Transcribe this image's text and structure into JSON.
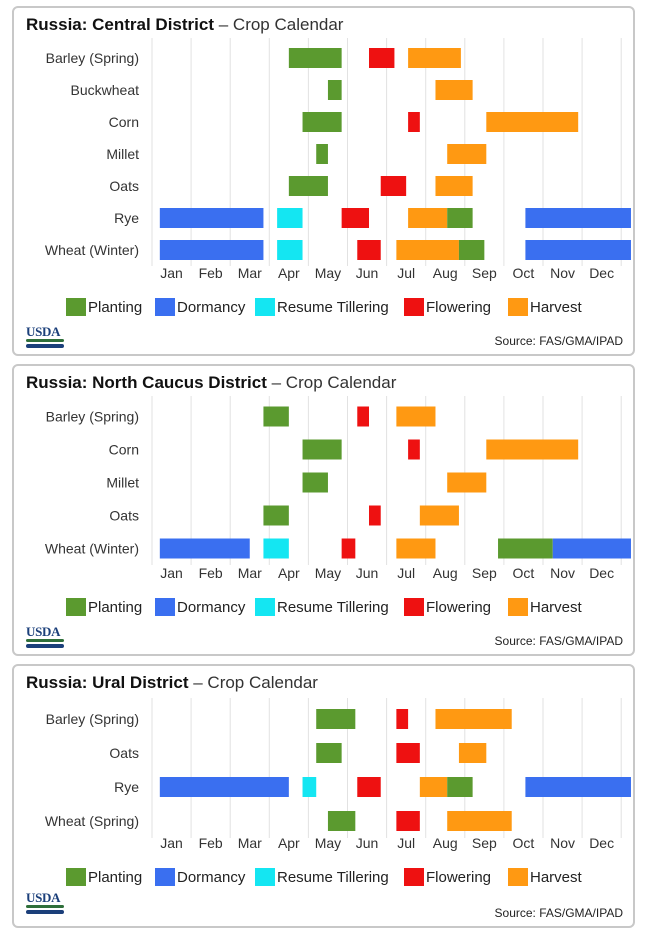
{
  "colors": {
    "Planting": "#5b9a2f",
    "Dormancy": "#3a6ff0",
    "Resume Tillering": "#14e6f2",
    "Flowering": "#ee1111",
    "Harvest": "#ff9912",
    "gridline": "#e2e2e2"
  },
  "legend": [
    "Planting",
    "Dormancy",
    "Resume Tillering",
    "Flowering",
    "Harvest"
  ],
  "months": [
    "Jan",
    "Feb",
    "Mar",
    "Apr",
    "May",
    "Jun",
    "Jul",
    "Aug",
    "Sep",
    "Oct",
    "Nov",
    "Dec"
  ],
  "logo_text": "USDA",
  "source": "Source: FAS/GMA/IPAD",
  "chart_data": [
    {
      "type": "gantt",
      "title": "Russia: Central District",
      "subtitle": "– Crop Calendar",
      "x_unit": "month",
      "crops": [
        {
          "name": "Barley (Spring)",
          "bars": [
            {
              "stage": "Planting",
              "start": 4.0,
              "end": 5.35
            },
            {
              "stage": "Flowering",
              "start": 6.05,
              "end": 6.7
            },
            {
              "stage": "Harvest",
              "start": 7.05,
              "end": 8.4
            }
          ]
        },
        {
          "name": "Buckwheat",
          "bars": [
            {
              "stage": "Planting",
              "start": 5.0,
              "end": 5.35
            },
            {
              "stage": "Harvest",
              "start": 7.75,
              "end": 8.7
            }
          ]
        },
        {
          "name": "Corn",
          "bars": [
            {
              "stage": "Planting",
              "start": 4.35,
              "end": 5.35
            },
            {
              "stage": "Flowering",
              "start": 7.05,
              "end": 7.35
            },
            {
              "stage": "Harvest",
              "start": 9.05,
              "end": 11.4
            }
          ]
        },
        {
          "name": "Millet",
          "bars": [
            {
              "stage": "Planting",
              "start": 4.7,
              "end": 5.0
            },
            {
              "stage": "Harvest",
              "start": 8.05,
              "end": 9.05
            }
          ]
        },
        {
          "name": "Oats",
          "bars": [
            {
              "stage": "Planting",
              "start": 4.0,
              "end": 5.0
            },
            {
              "stage": "Flowering",
              "start": 6.35,
              "end": 7.0
            },
            {
              "stage": "Harvest",
              "start": 7.75,
              "end": 8.7
            }
          ]
        },
        {
          "name": "Rye",
          "bars": [
            {
              "stage": "Dormancy",
              "start": 0.7,
              "end": 3.35
            },
            {
              "stage": "Resume Tillering",
              "start": 3.7,
              "end": 4.35
            },
            {
              "stage": "Flowering",
              "start": 5.35,
              "end": 6.05
            },
            {
              "stage": "Harvest",
              "start": 7.05,
              "end": 8.05
            },
            {
              "stage": "Planting",
              "start": 8.05,
              "end": 8.7
            },
            {
              "stage": "Dormancy",
              "start": 10.05,
              "end": 12.75
            }
          ]
        },
        {
          "name": "Wheat (Winter)",
          "bars": [
            {
              "stage": "Dormancy",
              "start": 0.7,
              "end": 3.35
            },
            {
              "stage": "Resume Tillering",
              "start": 3.7,
              "end": 4.35
            },
            {
              "stage": "Flowering",
              "start": 5.75,
              "end": 6.35
            },
            {
              "stage": "Harvest",
              "start": 6.75,
              "end": 8.35
            },
            {
              "stage": "Planting",
              "start": 8.35,
              "end": 9.0
            },
            {
              "stage": "Dormancy",
              "start": 10.05,
              "end": 12.75
            }
          ]
        }
      ]
    },
    {
      "type": "gantt",
      "title": "Russia: North Caucus District",
      "subtitle": "– Crop Calendar",
      "x_unit": "month",
      "crops": [
        {
          "name": "Barley (Spring)",
          "bars": [
            {
              "stage": "Planting",
              "start": 3.35,
              "end": 4.0
            },
            {
              "stage": "Flowering",
              "start": 5.75,
              "end": 6.05
            },
            {
              "stage": "Harvest",
              "start": 6.75,
              "end": 7.75
            }
          ]
        },
        {
          "name": "Corn",
          "bars": [
            {
              "stage": "Planting",
              "start": 4.35,
              "end": 5.35
            },
            {
              "stage": "Flowering",
              "start": 7.05,
              "end": 7.35
            },
            {
              "stage": "Harvest",
              "start": 9.05,
              "end": 11.4
            }
          ]
        },
        {
          "name": "Millet",
          "bars": [
            {
              "stage": "Planting",
              "start": 4.35,
              "end": 5.0
            },
            {
              "stage": "Harvest",
              "start": 8.05,
              "end": 9.05
            }
          ]
        },
        {
          "name": "Oats",
          "bars": [
            {
              "stage": "Planting",
              "start": 3.35,
              "end": 4.0
            },
            {
              "stage": "Flowering",
              "start": 6.05,
              "end": 6.35
            },
            {
              "stage": "Harvest",
              "start": 7.35,
              "end": 8.35
            }
          ]
        },
        {
          "name": "Wheat (Winter)",
          "bars": [
            {
              "stage": "Dormancy",
              "start": 0.7,
              "end": 3.0
            },
            {
              "stage": "Resume Tillering",
              "start": 3.35,
              "end": 4.0
            },
            {
              "stage": "Flowering",
              "start": 5.35,
              "end": 5.7
            },
            {
              "stage": "Harvest",
              "start": 6.75,
              "end": 7.75
            },
            {
              "stage": "Planting",
              "start": 9.35,
              "end": 10.75
            },
            {
              "stage": "Dormancy",
              "start": 10.75,
              "end": 12.75
            }
          ]
        }
      ]
    },
    {
      "type": "gantt",
      "title": "Russia: Ural District",
      "subtitle": "– Crop Calendar",
      "x_unit": "month",
      "crops": [
        {
          "name": "Barley (Spring)",
          "bars": [
            {
              "stage": "Planting",
              "start": 4.7,
              "end": 5.7
            },
            {
              "stage": "Flowering",
              "start": 6.75,
              "end": 7.05
            },
            {
              "stage": "Harvest",
              "start": 7.75,
              "end": 9.7
            }
          ]
        },
        {
          "name": "Oats",
          "bars": [
            {
              "stage": "Planting",
              "start": 4.7,
              "end": 5.35
            },
            {
              "stage": "Flowering",
              "start": 6.75,
              "end": 7.35
            },
            {
              "stage": "Harvest",
              "start": 8.35,
              "end": 9.05
            }
          ]
        },
        {
          "name": "Rye",
          "bars": [
            {
              "stage": "Dormancy",
              "start": 0.7,
              "end": 4.0
            },
            {
              "stage": "Resume Tillering",
              "start": 4.35,
              "end": 4.7
            },
            {
              "stage": "Flowering",
              "start": 5.75,
              "end": 6.35
            },
            {
              "stage": "Harvest",
              "start": 7.35,
              "end": 8.05
            },
            {
              "stage": "Planting",
              "start": 8.05,
              "end": 8.7
            },
            {
              "stage": "Dormancy",
              "start": 10.05,
              "end": 12.75
            }
          ]
        },
        {
          "name": "Wheat (Spring)",
          "bars": [
            {
              "stage": "Planting",
              "start": 5.0,
              "end": 5.7
            },
            {
              "stage": "Flowering",
              "start": 6.75,
              "end": 7.35
            },
            {
              "stage": "Harvest",
              "start": 8.05,
              "end": 9.7
            }
          ]
        }
      ]
    }
  ]
}
